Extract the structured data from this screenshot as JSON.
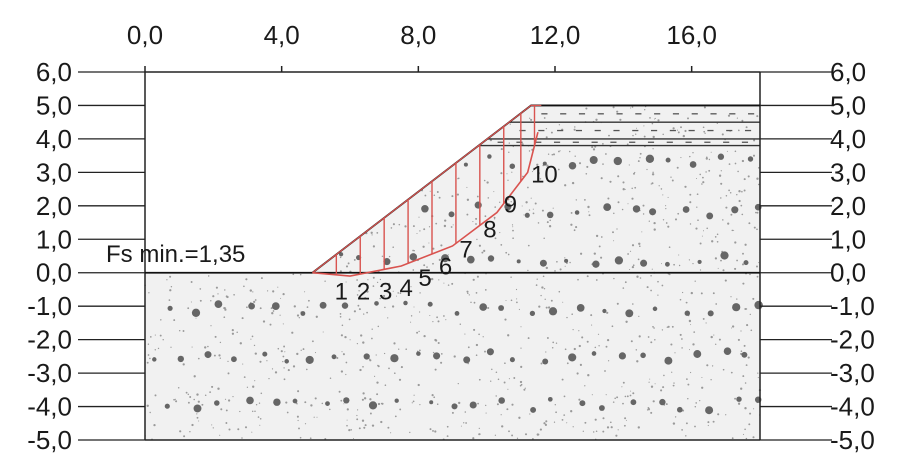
{
  "diagram": {
    "x_axis": {
      "range": [
        0,
        18
      ],
      "ticks": [
        0,
        4,
        8,
        12,
        16
      ],
      "tick_labels": [
        "0,0",
        "4,0",
        "8,0",
        "12,0",
        "16,0"
      ]
    },
    "y_axis": {
      "range": [
        -5,
        6
      ],
      "ticks": [
        6,
        5,
        4,
        3,
        2,
        1,
        0,
        -1,
        -2,
        -3,
        -4,
        -5
      ],
      "tick_labels": [
        "6,0",
        "5,0",
        "4,0",
        "3,0",
        "2,0",
        "1,0",
        "0,0",
        "-1,0",
        "-2,0",
        "-3,0",
        "-4,0",
        "-5,0"
      ]
    },
    "safety_factor_label": "Fs min.=1,35",
    "slope_surface": [
      [
        4.9,
        0
      ],
      [
        11.3,
        5.0
      ],
      [
        18,
        5.0
      ]
    ],
    "ground_level": 0,
    "layer_lines": [
      5.0,
      4.5,
      4.0,
      3.8
    ],
    "slip_surface": [
      [
        4.9,
        0
      ],
      [
        6.0,
        -0.1
      ],
      [
        7.5,
        0.2
      ],
      [
        9.0,
        0.8
      ],
      [
        10.3,
        1.8
      ],
      [
        11.2,
        3.0
      ],
      [
        11.5,
        4.2
      ]
    ],
    "slice_labels": [
      "1",
      "2",
      "3",
      "4",
      "5",
      "6",
      "7",
      "8",
      "9",
      "10"
    ],
    "colors": {
      "slip_lines": "#d9534f",
      "soil_dots": "#666666",
      "grid": "#222222"
    }
  }
}
